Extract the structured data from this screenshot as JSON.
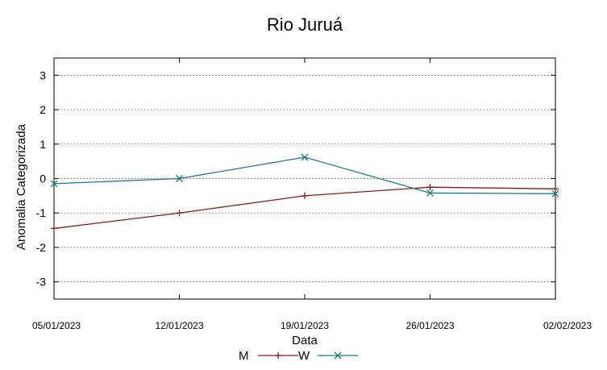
{
  "chart_data": {
    "type": "line",
    "title": "Rio Juruá",
    "xlabel": "Data",
    "ylabel": "Anomalia Categorizada",
    "x": [
      "05/01/2023",
      "12/01/2023",
      "19/01/2023",
      "26/01/2023",
      "02/02/2023"
    ],
    "ylim": [
      -3.5,
      3.5
    ],
    "yticks": [
      3,
      2,
      1,
      0,
      -1,
      -2,
      -3
    ],
    "grid": true,
    "legend_position": "bottom",
    "series": [
      {
        "name": "M",
        "color": "#8b1a1a",
        "marker": "plus",
        "values": [
          -1.45,
          -1.0,
          -0.5,
          -0.25,
          -0.3
        ]
      },
      {
        "name": "W",
        "color": "#1e7b7b",
        "marker": "x",
        "values": [
          -0.15,
          0.0,
          0.62,
          -0.42,
          -0.44
        ]
      }
    ]
  }
}
